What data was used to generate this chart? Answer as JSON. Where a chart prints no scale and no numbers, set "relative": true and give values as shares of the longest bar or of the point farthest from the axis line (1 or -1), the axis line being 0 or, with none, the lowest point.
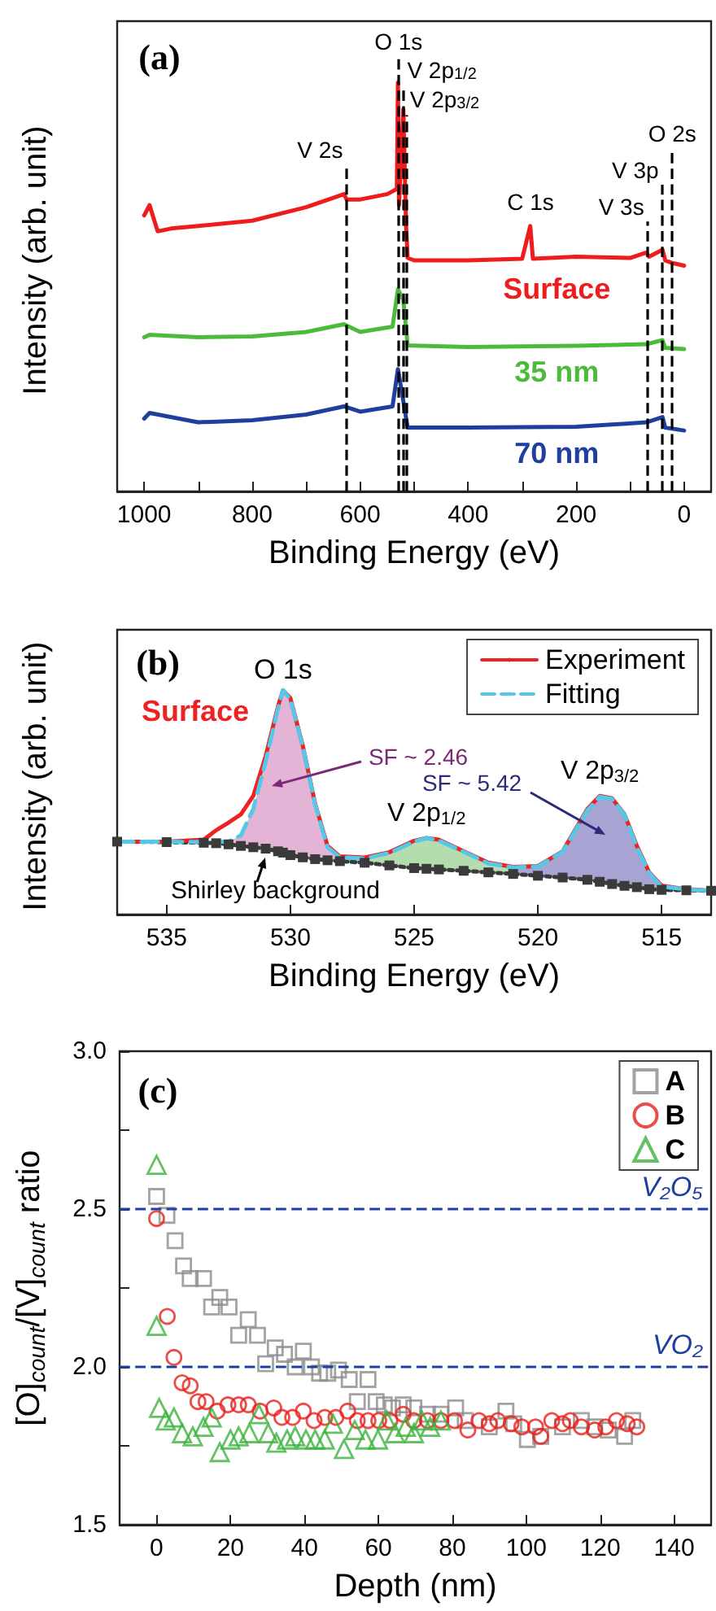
{
  "chart_data": [
    {
      "type": "line",
      "relative": true,
      "xlabel": "Binding Energy (eV)",
      "ylabel": "Intensity (arb. unit)",
      "xlim": [
        1050,
        -50
      ],
      "xticks": [
        1000,
        {
          "value": 900,
          "label": null
        },
        800,
        {
          "value": 700,
          "label": null
        },
        600,
        {
          "value": 500,
          "label": null
        },
        400,
        {
          "value": 300,
          "label": null
        },
        200,
        {
          "value": 100,
          "label": null
        },
        0
      ],
      "legend": false,
      "annotations": [
        "(a)",
        "C 1s",
        {
          "text": "V 2s",
          "x": 626,
          "y": 0.8
        },
        {
          "text": "O 1s",
          "x": 529,
          "y": 1.065
        },
        {
          "text": "V 2p$_{1/2}$",
          "x": 519,
          "y": 0.99
        },
        {
          "text": "V 2p$_{3/2}$",
          "x": 514,
          "y": 0.92
        },
        {
          "text": "V 3s",
          "x": 68,
          "y": 0.66
        },
        {
          "text": "V 3p",
          "x": 41,
          "y": 0.75
        },
        {
          "text": "O 2s",
          "x": 22,
          "y": 0.84
        }
      ],
      "ref_lines": [
        {
          "axis": "x",
          "value": 626,
          "line_style": "dashed",
          "color": "#000000"
        },
        {
          "axis": "x",
          "value": 529,
          "line_style": "dashed",
          "color": "#000000"
        },
        {
          "axis": "x",
          "value": 519,
          "line_style": "dashed",
          "color": "#000000"
        },
        {
          "axis": "x",
          "value": 514,
          "line_style": "dashed",
          "color": "#000000"
        },
        {
          "axis": "x",
          "value": 68,
          "line_style": "dashed",
          "color": "#000000"
        },
        {
          "axis": "x",
          "value": 41,
          "line_style": "dashed",
          "color": "#000000"
        },
        {
          "axis": "x",
          "value": 22,
          "line_style": "dashed",
          "color": "#000000"
        }
      ],
      "series": [
        {
          "name": "Surface",
          "color": "#ee1c1c",
          "x": [
            1000,
            990,
            975,
            950,
            900,
            800,
            700,
            630,
            625,
            600,
            550,
            540,
            532,
            530,
            528,
            520,
            515,
            512,
            500,
            400,
            300,
            285,
            280,
            200,
            100,
            70,
            65,
            40,
            35,
            20,
            0
          ],
          "values": [
            0.675,
            0.7,
            0.636,
            0.643,
            0.649,
            0.662,
            0.695,
            0.727,
            0.714,
            0.714,
            0.727,
            0.734,
            0.74,
            1.0,
            0.7,
            0.935,
            0.65,
            0.571,
            0.565,
            0.565,
            0.569,
            0.649,
            0.569,
            0.574,
            0.571,
            0.584,
            0.574,
            0.591,
            0.565,
            0.558,
            0.552
          ]
        },
        {
          "name": "35 nm",
          "color": "#4cbb3c",
          "x": [
            1000,
            990,
            900,
            800,
            700,
            630,
            600,
            540,
            530,
            520,
            512,
            400,
            200,
            70,
            40,
            35,
            0
          ],
          "values": [
            0.377,
            0.383,
            0.377,
            0.379,
            0.39,
            0.409,
            0.39,
            0.403,
            0.494,
            0.468,
            0.357,
            0.353,
            0.356,
            0.36,
            0.37,
            0.351,
            0.348
          ]
        },
        {
          "name": "70 nm",
          "color": "#1f3f9f",
          "x": [
            1000,
            990,
            900,
            800,
            700,
            630,
            600,
            540,
            530,
            520,
            512,
            400,
            200,
            70,
            40,
            35,
            0
          ],
          "values": [
            0.178,
            0.192,
            0.169,
            0.174,
            0.188,
            0.208,
            0.195,
            0.208,
            0.299,
            0.221,
            0.156,
            0.156,
            0.158,
            0.169,
            0.182,
            0.156,
            0.149
          ]
        }
      ]
    },
    {
      "type": "line",
      "relative": true,
      "xlabel": "Binding Energy (eV)",
      "ylabel": "Intensity (arb. unit)",
      "xlim": [
        537,
        513
      ],
      "xticks": [
        535,
        530,
        525,
        520,
        515
      ],
      "legend": "top right",
      "x": [
        537,
        535,
        533.5,
        533,
        532.5,
        532,
        531.5,
        531,
        530.5,
        530.3,
        530,
        529.5,
        529,
        528.5,
        528,
        527,
        526,
        525,
        524.5,
        524,
        523,
        522,
        521,
        520,
        519,
        518,
        517.5,
        517,
        516.5,
        516,
        515.5,
        515,
        514,
        513
      ],
      "annotations": [
        "(b)",
        "Surface",
        "SF ~ 2.46",
        "SF ~ 5.42",
        {
          "text": "O 1s",
          "x": 530.3,
          "y": 1.0
        },
        {
          "text": "V 2p$_{1/2}$",
          "x": 524.5,
          "y": 0.341
        },
        {
          "text": "V 2p$_{3/2}$",
          "x": 517.5,
          "y": 0.529
        },
        {
          "text": "Shirley background",
          "x": 531,
          "y": 0.294
        }
      ],
      "series": [
        {
          "type": "area",
          "color": "#e4b4d6",
          "values": [
            null,
            null,
            null,
            0.325,
            0.325,
            0.353,
            0.471,
            0.682,
            0.92,
            1.0,
            0.96,
            0.75,
            0.49,
            0.3,
            0.255,
            null,
            null,
            null,
            null,
            null,
            null,
            null,
            null,
            null,
            null,
            null,
            null,
            null,
            null,
            null,
            null,
            null,
            null,
            null
          ]
        },
        {
          "type": "area",
          "color": "#b5dcae",
          "values": [
            null,
            null,
            null,
            null,
            null,
            null,
            null,
            null,
            null,
            null,
            null,
            null,
            null,
            null,
            0.255,
            0.25,
            0.275,
            0.325,
            0.341,
            0.33,
            0.28,
            0.228,
            0.21,
            null,
            null,
            null,
            null,
            null,
            null,
            null,
            null,
            null,
            null,
            null
          ]
        },
        {
          "type": "area",
          "color": "#a7a3d3",
          "values": [
            null,
            null,
            null,
            null,
            null,
            null,
            null,
            null,
            null,
            null,
            null,
            null,
            null,
            null,
            null,
            null,
            null,
            null,
            null,
            null,
            null,
            null,
            0.21,
            0.214,
            0.28,
            0.465,
            0.525,
            0.515,
            0.445,
            0.3,
            0.185,
            0.125,
            0.112,
            0.106
          ]
        },
        {
          "color": "#3a3a3a",
          "line_style": "dotted",
          "marker": "square",
          "values": [
            0.325,
            0.323,
            0.32,
            0.318,
            0.313,
            0.306,
            0.3,
            0.294,
            0.282,
            0.276,
            0.265,
            0.255,
            0.247,
            0.242,
            0.238,
            0.231,
            0.219,
            0.207,
            0.204,
            0.201,
            0.195,
            0.188,
            0.181,
            0.173,
            0.165,
            0.155,
            0.146,
            0.136,
            0.128,
            0.122,
            0.113,
            0.11,
            0.108,
            0.106
          ]
        },
        {
          "name": "Experiment",
          "color": "#ee2222",
          "line_style": "solid",
          "values": [
            0.325,
            0.325,
            0.334,
            0.376,
            0.41,
            0.447,
            0.529,
            0.706,
            0.929,
            1.0,
            0.965,
            0.753,
            0.494,
            0.306,
            0.259,
            0.254,
            0.278,
            0.329,
            0.341,
            0.334,
            0.282,
            0.231,
            0.212,
            0.216,
            0.282,
            0.471,
            0.529,
            0.518,
            0.447,
            0.306,
            0.188,
            0.129,
            0.113,
            0.106
          ]
        },
        {
          "name": "Fitting",
          "color": "#55c8e8",
          "line_style": "dashed",
          "values": [
            0.325,
            0.325,
            0.323,
            0.325,
            0.325,
            0.353,
            0.471,
            0.682,
            0.92,
            1.0,
            0.96,
            0.75,
            0.49,
            0.3,
            0.255,
            0.25,
            0.275,
            0.325,
            0.341,
            0.33,
            0.28,
            0.228,
            0.21,
            0.214,
            0.28,
            0.465,
            0.525,
            0.515,
            0.445,
            0.3,
            0.185,
            0.125,
            0.112,
            0.106
          ]
        }
      ]
    },
    {
      "type": "scatter",
      "xlabel": "Depth (nm)",
      "ylabel": "[O]$_{count}$/[V]$_{count}$ ratio",
      "xlim": [
        -10,
        150
      ],
      "xticks": [
        0,
        20,
        40,
        60,
        80,
        100,
        120,
        140
      ],
      "ylim": [
        1.5,
        3.0
      ],
      "yticks": [
        {
          "value": 1.5,
          "label": "1.5"
        },
        {
          "value": 1.75,
          "label": null
        },
        {
          "value": 2.0,
          "label": "2.0"
        },
        {
          "value": 2.25,
          "label": null
        },
        {
          "value": 2.5,
          "label": "2.5"
        },
        {
          "value": 2.75,
          "label": null
        },
        {
          "value": 3.0,
          "label": "3.0"
        }
      ],
      "legend": "top right",
      "annotations": [
        "(c)"
      ],
      "ref_lines": [
        {
          "axis": "y",
          "value": 2.5,
          "label": "V₂O₅",
          "line_style": "dashed",
          "color": "#1f3f9f"
        },
        {
          "axis": "y",
          "value": 2.0,
          "label": "VO₂",
          "line_style": "dashed",
          "color": "#1f3f9f"
        }
      ],
      "series": [
        {
          "name": "A",
          "color": "#8c8c8c",
          "marker": "square",
          "x": [
            0,
            2.8,
            5,
            7.3,
            9.1,
            12.7,
            14.9,
            17.1,
            19.6,
            22.2,
            24.8,
            27.3,
            29.5,
            32.1,
            34.6,
            37.5,
            39.7,
            41.9,
            44.1,
            46.3,
            49.2,
            52.1,
            54.3,
            57.2,
            59.4,
            61.6,
            63.8,
            66.7,
            69.6,
            73.3,
            76.9,
            80.9,
            83.5,
            90,
            94.5,
            96.6,
            100.3,
            103.9,
            109.8,
            114.9,
            118.5,
            122.2,
            126.6,
            128.8
          ],
          "values": [
            2.54,
            2.48,
            2.4,
            2.32,
            2.28,
            2.28,
            2.19,
            2.22,
            2.19,
            2.1,
            2.15,
            2.1,
            2.01,
            2.06,
            2.04,
            2.0,
            2.05,
            2.0,
            1.98,
            1.98,
            1.99,
            1.96,
            1.89,
            1.96,
            1.89,
            1.88,
            1.87,
            1.88,
            1.87,
            1.85,
            1.85,
            1.87,
            1.83,
            1.81,
            1.86,
            1.82,
            1.77,
            1.78,
            1.81,
            1.83,
            1.81,
            1.8,
            1.78,
            1.83
          ]
        },
        {
          "name": "B",
          "color": "#e8201c",
          "marker": "circle",
          "x": [
            0,
            2.9,
            4.7,
            6.9,
            9.1,
            11.2,
            13.4,
            16.4,
            19.3,
            22.2,
            24.8,
            28,
            31.7,
            33.9,
            36.8,
            39.7,
            42.6,
            45.5,
            48.5,
            51.7,
            54.3,
            57.2,
            60.1,
            63.1,
            66.7,
            69.6,
            73.3,
            76.9,
            80.6,
            84.2,
            87.2,
            90,
            92.3,
            95.9,
            98.8,
            102.5,
            103.9,
            106.9,
            109.8,
            111.9,
            114.9,
            118.5,
            121.5,
            124.4,
            127.3,
            129.9
          ],
          "values": [
            2.47,
            2.16,
            2.03,
            1.95,
            1.94,
            1.89,
            1.89,
            1.86,
            1.88,
            1.88,
            1.88,
            1.86,
            1.87,
            1.84,
            1.84,
            1.86,
            1.83,
            1.84,
            1.84,
            1.86,
            1.83,
            1.83,
            1.83,
            1.83,
            1.85,
            1.83,
            1.83,
            1.83,
            1.83,
            1.8,
            1.83,
            1.82,
            1.83,
            1.82,
            1.81,
            1.81,
            1.78,
            1.83,
            1.82,
            1.83,
            1.81,
            1.8,
            1.81,
            1.83,
            1.82,
            1.81
          ]
        },
        {
          "name": "C",
          "color": "#3db33d",
          "marker": "triangle",
          "x": [
            0,
            0,
            0.7,
            2.5,
            4.7,
            6.9,
            9.8,
            12.7,
            14.9,
            17.1,
            20,
            22.2,
            25.1,
            27.7,
            30.2,
            32.4,
            35.3,
            37.5,
            40.4,
            42.9,
            45.5,
            47.7,
            50.7,
            53.6,
            56.5,
            59.9,
            62.3,
            64.5,
            67.4,
            69.6,
            71.8,
            74,
            76.9
          ],
          "values": [
            2.64,
            2.13,
            1.87,
            1.83,
            1.84,
            1.79,
            1.78,
            1.81,
            1.84,
            1.73,
            1.77,
            1.78,
            1.79,
            1.85,
            1.79,
            1.76,
            1.77,
            1.78,
            1.77,
            1.77,
            1.77,
            1.82,
            1.74,
            1.8,
            1.77,
            1.77,
            1.83,
            1.79,
            1.81,
            1.79,
            1.83,
            1.81,
            1.83
          ]
        }
      ]
    }
  ]
}
